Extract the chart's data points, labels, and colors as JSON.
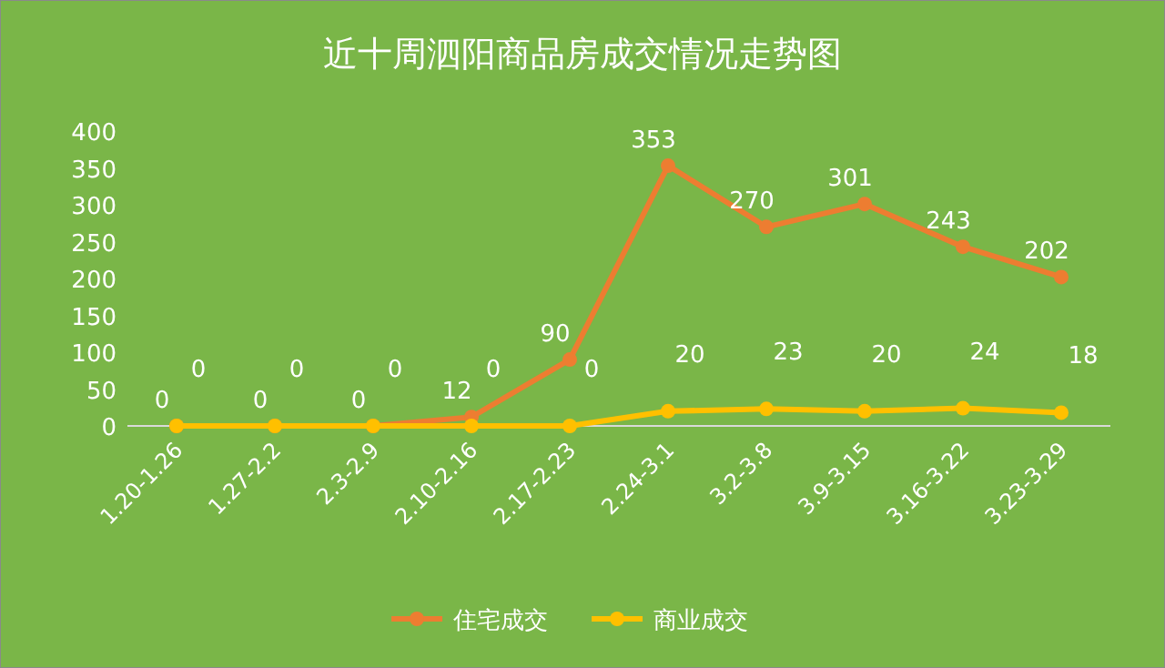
{
  "chart_data": {
    "type": "line",
    "title": "近十周泗阳商品房成交情况走势图",
    "categories": [
      "1.20-1.26",
      "1.27-2.2",
      "2.3-2.9",
      "2.10-2.16",
      "2.17-2.23",
      "2.24-3.1",
      "3.2-3.8",
      "3.9-3.15",
      "3.16-3.22",
      "3.23-3.29"
    ],
    "series": [
      {
        "name": "住宅成交",
        "color": "#ed7d31",
        "values": [
          0,
          0,
          0,
          12,
          90,
          353,
          270,
          301,
          243,
          202
        ]
      },
      {
        "name": "商业成交",
        "color": "#ffc000",
        "values": [
          0,
          0,
          0,
          0,
          0,
          20,
          23,
          20,
          24,
          18
        ]
      }
    ],
    "ylim": [
      0,
      400
    ],
    "yticks": [
      0,
      50,
      100,
      150,
      200,
      250,
      300,
      350,
      400
    ],
    "data_labels": true,
    "legend": "bottom",
    "marker": "circle",
    "line_style": "solid"
  }
}
